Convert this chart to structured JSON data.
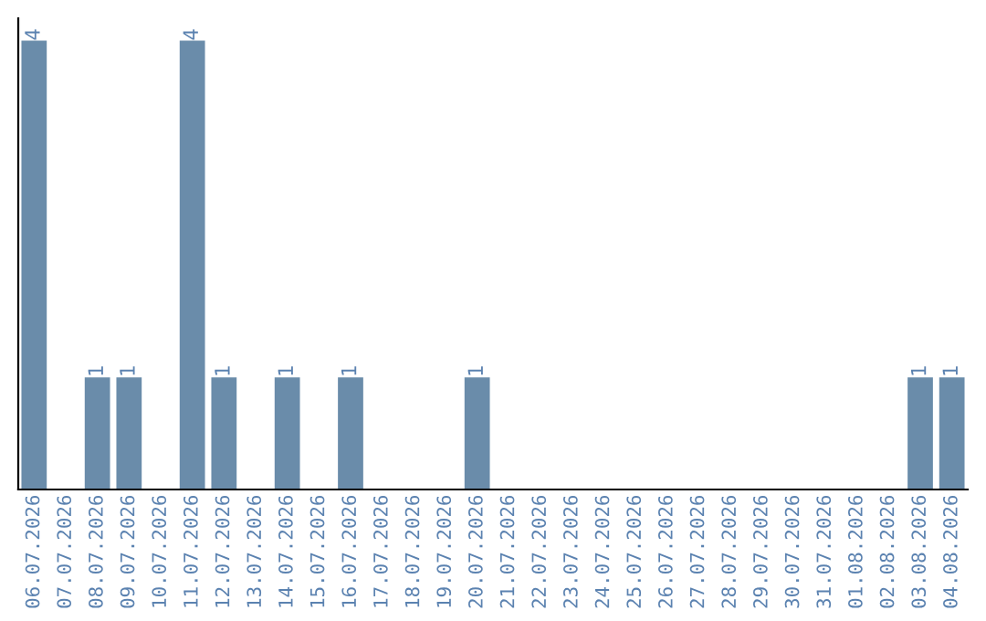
{
  "chart_data": {
    "type": "bar",
    "categories": [
      "06.07.2026",
      "07.07.2026",
      "08.07.2026",
      "09.07.2026",
      "10.07.2026",
      "11.07.2026",
      "12.07.2026",
      "13.07.2026",
      "14.07.2026",
      "15.07.2026",
      "16.07.2026",
      "17.07.2026",
      "18.07.2026",
      "19.07.2026",
      "20.07.2026",
      "21.07.2026",
      "22.07.2026",
      "23.07.2026",
      "24.07.2026",
      "25.07.2026",
      "26.07.2026",
      "27.07.2026",
      "28.07.2026",
      "29.07.2026",
      "30.07.2026",
      "31.07.2026",
      "01.08.2026",
      "02.08.2026",
      "03.08.2026",
      "04.08.2026"
    ],
    "values": [
      4,
      0,
      1,
      1,
      0,
      4,
      1,
      0,
      1,
      0,
      1,
      0,
      0,
      0,
      1,
      0,
      0,
      0,
      0,
      0,
      0,
      0,
      0,
      0,
      0,
      0,
      0,
      0,
      1,
      1
    ],
    "value_labels": [
      "4",
      null,
      "1",
      "1",
      null,
      "4",
      "1",
      null,
      "1",
      null,
      "1",
      null,
      null,
      null,
      "1",
      null,
      null,
      null,
      null,
      null,
      null,
      null,
      null,
      null,
      null,
      null,
      null,
      null,
      "1",
      "1"
    ],
    "color": "#6a8caa",
    "tick_labels": "x",
    "grid": false,
    "legend": false
  }
}
